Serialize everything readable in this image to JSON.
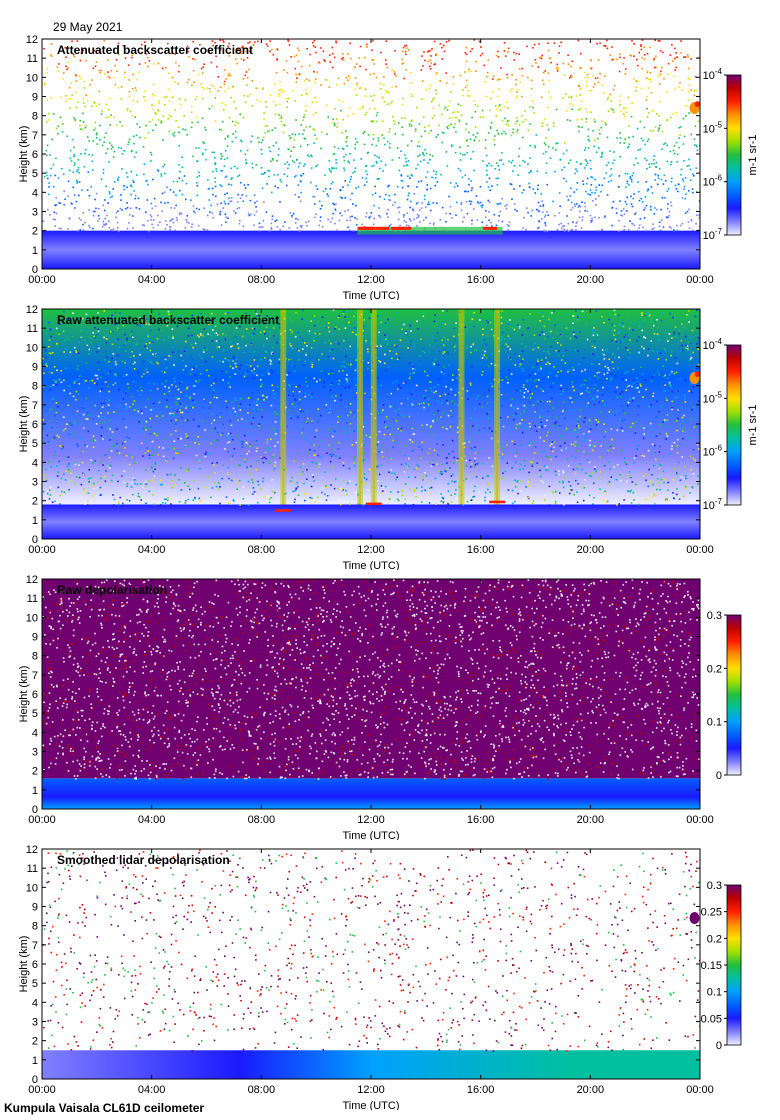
{
  "date": "29 May 2021",
  "footer": "Kumpula Vaisala CL61D ceilometer",
  "chart_data": [
    {
      "type": "heatmap",
      "title": "Attenuated backscatter coefficient",
      "xlabel": "Time (UTC)",
      "ylabel": "Height (km)",
      "xticks": [
        "00:00",
        "04:00",
        "08:00",
        "12:00",
        "16:00",
        "20:00",
        "00:00"
      ],
      "yticks": [
        "0",
        "1",
        "2",
        "3",
        "4",
        "5",
        "6",
        "7",
        "8",
        "9",
        "10",
        "11",
        "12"
      ],
      "ylim": [
        0,
        12
      ],
      "colorbar": {
        "scale": "log",
        "ticks": [
          "10-7",
          "10-6",
          "10-5",
          "10-4"
        ],
        "unit": "m-1 sr-1"
      },
      "colors": [
        "#f0f0ff",
        "#8080ff",
        "#1a1aff",
        "#0060ff",
        "#00a0ff",
        "#00c0a0",
        "#20c040",
        "#a0e000",
        "#ffe000",
        "#ff9000",
        "#ff2000",
        "#c00000",
        "#700070"
      ],
      "features": {
        "boundary_layer_top_km": 2.0,
        "cloud_layer_km": [
          1.8,
          2.2
        ],
        "cloud_hours": [
          11.5,
          16.8
        ],
        "noise_top_km": 12
      }
    },
    {
      "type": "heatmap",
      "title": "Raw attenuated backscatter coefficient",
      "xlabel": "Time (UTC)",
      "ylabel": "Height (km)",
      "xticks": [
        "00:00",
        "04:00",
        "08:00",
        "12:00",
        "16:00",
        "20:00",
        "00:00"
      ],
      "yticks": [
        "0",
        "1",
        "2",
        "3",
        "4",
        "5",
        "6",
        "7",
        "8",
        "9",
        "10",
        "11",
        "12"
      ],
      "ylim": [
        0,
        12
      ],
      "colorbar": {
        "scale": "log",
        "ticks": [
          "10-7",
          "10-6",
          "10-5",
          "10-4"
        ],
        "unit": "m-1 sr-1"
      },
      "colors": [
        "#f0f0ff",
        "#8080ff",
        "#1a1aff",
        "#0060ff",
        "#00a0ff",
        "#00c0a0",
        "#20c040",
        "#a0e000",
        "#ffe000",
        "#ff9000",
        "#ff2000",
        "#c00000",
        "#700070"
      ],
      "features": {
        "boundary_layer_top_km": 1.8,
        "cloud_layer_km": [
          1.8,
          2.1
        ],
        "vertical_streak_hours": [
          8.8,
          11.6,
          12.1,
          15.3,
          16.6
        ],
        "noise_top_km": 12
      }
    },
    {
      "type": "heatmap",
      "title": "Raw depolarisation",
      "xlabel": "Time (UTC)",
      "ylabel": "Height (km)",
      "xticks": [
        "00:00",
        "04:00",
        "08:00",
        "12:00",
        "16:00",
        "20:00",
        "00:00"
      ],
      "yticks": [
        "0",
        "1",
        "2",
        "3",
        "4",
        "5",
        "6",
        "7",
        "8",
        "9",
        "10",
        "11",
        "12"
      ],
      "ylim": [
        0,
        12
      ],
      "colorbar": {
        "scale": "linear",
        "ticks": [
          "0",
          "0.1",
          "0.2",
          "0.3"
        ],
        "range": [
          0,
          0.3
        ]
      },
      "colors": [
        "#f0f0ff",
        "#8080ff",
        "#1a1aff",
        "#0060ff",
        "#00a0ff",
        "#00c0a0",
        "#20c040",
        "#a0e000",
        "#ffe000",
        "#ff9000",
        "#ff2000",
        "#c00000",
        "#700070"
      ],
      "features": {
        "boundary_layer_top_km": 1.6,
        "noise_top_km": 12
      }
    },
    {
      "type": "heatmap",
      "title": "Smoothed lidar depolarisation",
      "xlabel": "Time (UTC)",
      "ylabel": "Height (km)",
      "xticks": [
        "00:00",
        "04:00",
        "08:00",
        "12:00",
        "16:00",
        "20:00",
        "00:00"
      ],
      "yticks": [
        "0",
        "1",
        "2",
        "3",
        "4",
        "5",
        "6",
        "7",
        "8",
        "9",
        "10",
        "11",
        "12"
      ],
      "ylim": [
        0,
        12
      ],
      "colorbar": {
        "scale": "linear",
        "ticks": [
          "0",
          "0.05",
          "0.1",
          "0.15",
          "0.2",
          "0.25",
          "0.3"
        ],
        "range": [
          0,
          0.3
        ]
      },
      "colors": [
        "#f0f0ff",
        "#8080ff",
        "#1a1aff",
        "#0060ff",
        "#00a0ff",
        "#00c0a0",
        "#20c040",
        "#a0e000",
        "#ffe000",
        "#ff9000",
        "#ff2000",
        "#c00000",
        "#700070"
      ],
      "features": {
        "boundary_layer_top_km": 1.5,
        "noise_top_km": 12
      }
    }
  ]
}
